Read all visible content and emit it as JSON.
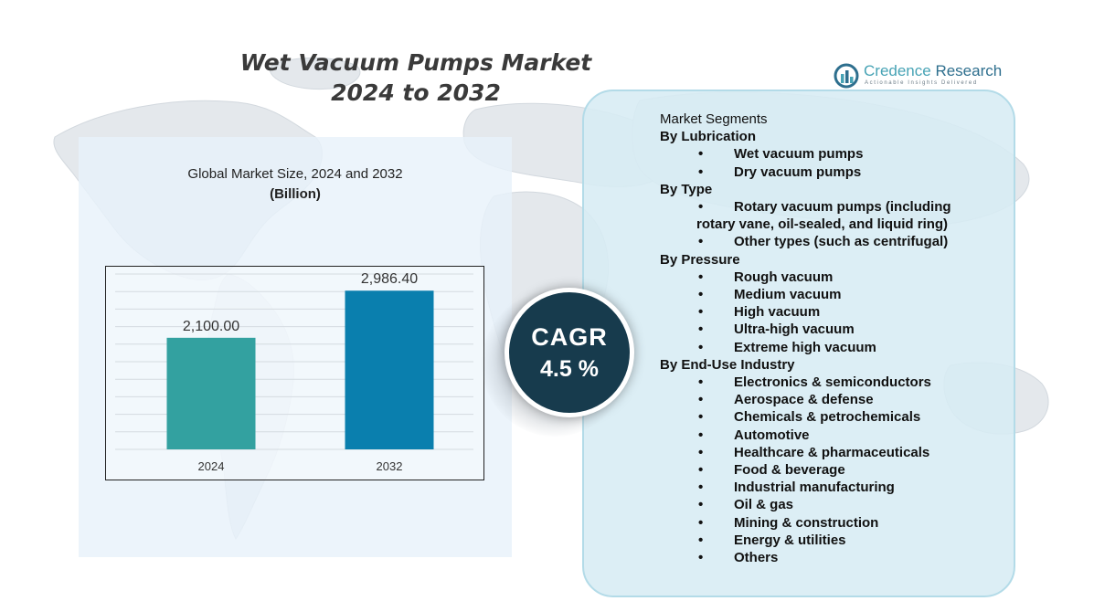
{
  "title": {
    "line1": "Wet Vacuum Pumps Market",
    "line2": "2024 to 2032"
  },
  "logo": {
    "name_part1": "Credence",
    "name_part2": " Research",
    "tagline": "Actionable Insights Delivered",
    "icon": "bar-chart-logo-icon"
  },
  "chart_caption": {
    "line1": "Global Market Size,  2024 and 2032",
    "unit": "(Billion)"
  },
  "chart_data": {
    "type": "bar",
    "categories": [
      "2024",
      "2032"
    ],
    "values": [
      2100.0,
      2986.4
    ],
    "value_labels": [
      "2,100.00",
      "2,986.40"
    ],
    "colors": [
      "#33a1a0",
      "#0a7fae"
    ],
    "title": "Global Market Size,  2024 and 2032",
    "ylabel": "(Billion)",
    "xlabel": "",
    "ylim": [
      0,
      3300
    ],
    "grid": true,
    "legend": "none"
  },
  "cagr": {
    "label": "CAGR",
    "value": "4.5 %"
  },
  "segments": {
    "heading": "Market Segments",
    "groups": [
      {
        "name": "By Lubrication",
        "items": [
          "Wet vacuum pumps",
          "Dry vacuum pumps"
        ]
      },
      {
        "name": "By Type",
        "items": [
          "Rotary vacuum pumps (including",
          "rotary vane, oil-sealed, and liquid ring)",
          "Other types (such as centrifugal)"
        ]
      },
      {
        "name": "By Pressure",
        "items": [
          "Rough vacuum",
          "Medium vacuum",
          "High vacuum",
          "Ultra-high vacuum",
          "Extreme high vacuum"
        ]
      },
      {
        "name": "By End-Use Industry",
        "items": [
          "Electronics & semiconductors",
          "Aerospace & defense",
          "Chemicals & petrochemicals",
          "Automotive",
          "Healthcare & pharmaceuticals",
          "Food & beverage",
          "Industrial manufacturing",
          "Oil & gas",
          "Mining & construction",
          "Energy & utilities",
          "Others"
        ]
      }
    ]
  }
}
